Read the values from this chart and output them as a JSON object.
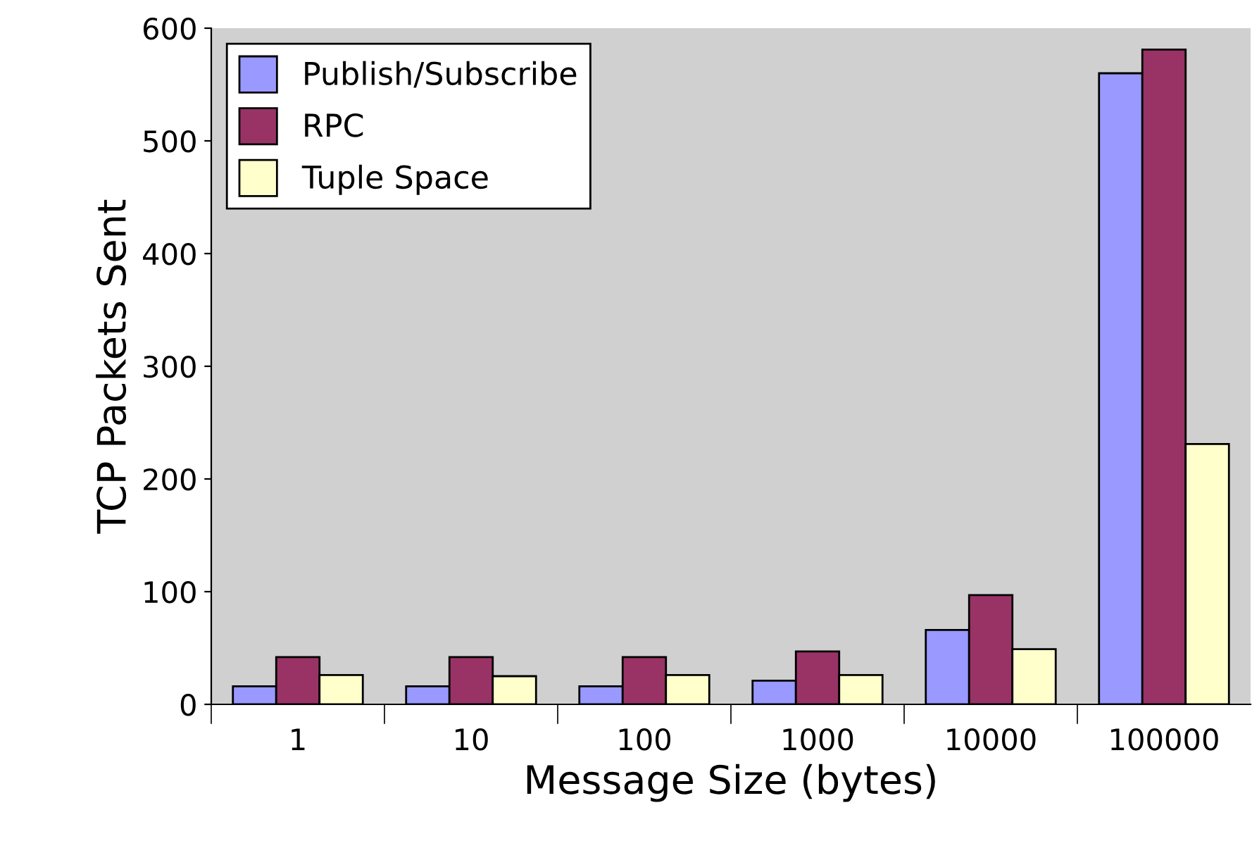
{
  "chart_data": {
    "type": "bar",
    "xlabel": "Message Size (bytes)",
    "ylabel": "TCP Packets Sent",
    "categories": [
      "1",
      "10",
      "100",
      "1000",
      "10000",
      "100000"
    ],
    "series": [
      {
        "name": "Publish/Subscribe",
        "color": "#9999ff",
        "values": [
          16,
          16,
          16,
          21,
          66,
          560
        ]
      },
      {
        "name": "RPC",
        "color": "#993366",
        "values": [
          42,
          42,
          42,
          47,
          97,
          581
        ]
      },
      {
        "name": "Tuple Space",
        "color": "#ffffcc",
        "values": [
          26,
          25,
          26,
          26,
          49,
          231
        ]
      }
    ],
    "ylim": [
      0,
      600
    ],
    "yticks": [
      0,
      100,
      200,
      300,
      400,
      500,
      600
    ],
    "grid": false,
    "legend": "top left"
  }
}
